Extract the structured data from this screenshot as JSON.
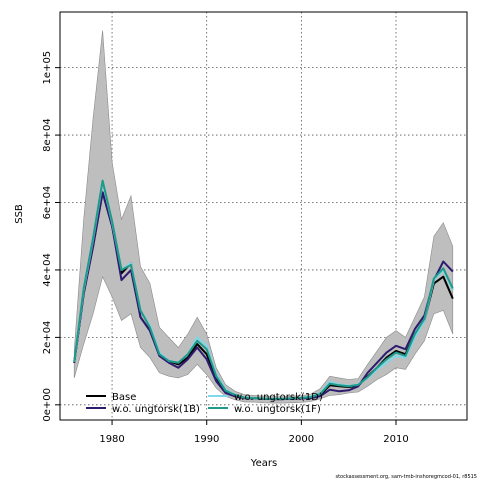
{
  "chart_data": {
    "type": "line",
    "xlabel": "Years",
    "ylabel": "SSB",
    "xlim": [
      1974.5,
      2017.5
    ],
    "ylim": [
      -4500,
      116500
    ],
    "xticks": [
      1980,
      1990,
      2000,
      2010
    ],
    "xtick_labels": [
      "1980",
      "1990",
      "2000",
      "2010"
    ],
    "yticks": [
      0,
      20000,
      40000,
      60000,
      80000,
      100000
    ],
    "ytick_labels": [
      "0e+00",
      "2e+04",
      "4e+04",
      "6e+04",
      "8e+04",
      "1e+05"
    ],
    "grid": true,
    "legend_position": "bottom-left",
    "x": [
      1976,
      1977,
      1978,
      1979,
      1980,
      1981,
      1982,
      1983,
      1984,
      1985,
      1986,
      1987,
      1988,
      1989,
      1990,
      1991,
      1992,
      1993,
      1994,
      1995,
      1996,
      1997,
      1998,
      1999,
      2000,
      2001,
      2002,
      2003,
      2004,
      2005,
      2006,
      2007,
      2008,
      2009,
      2010,
      2011,
      2012,
      2013,
      2014,
      2015,
      2016
    ],
    "confidence_band": {
      "color": "#bebebe",
      "upper": [
        16000,
        55000,
        85000,
        111000,
        72000,
        55000,
        62000,
        41000,
        36000,
        23000,
        20000,
        17000,
        21000,
        26000,
        21000,
        11000,
        6000,
        4000,
        3000,
        2800,
        2600,
        2400,
        2400,
        2600,
        2700,
        3200,
        4800,
        8500,
        8000,
        7500,
        7800,
        12000,
        16000,
        20000,
        22000,
        20000,
        26000,
        32000,
        50000,
        54000,
        47000
      ],
      "lower": [
        8000,
        18000,
        27000,
        38000,
        32000,
        25000,
        27000,
        17000,
        14000,
        9500,
        8500,
        8000,
        9000,
        12000,
        9000,
        5000,
        2500,
        1500,
        800,
        800,
        600,
        500,
        500,
        600,
        700,
        1000,
        1800,
        2800,
        3000,
        3500,
        3800,
        5500,
        7500,
        9000,
        11000,
        10500,
        15000,
        19000,
        27000,
        28000,
        21000
      ]
    },
    "series": [
      {
        "name": "Base",
        "color": "#000000",
        "values": [
          12500,
          33000,
          47000,
          63000,
          53000,
          39000,
          42000,
          26000,
          22000,
          15000,
          13000,
          12000,
          14000,
          18000,
          15000,
          8000,
          4000,
          2700,
          2000,
          2000,
          1800,
          1700,
          1700,
          1900,
          2000,
          2200,
          2900,
          5800,
          5500,
          5300,
          5700,
          8400,
          11000,
          14000,
          16000,
          15000,
          21000,
          25000,
          36000,
          38000,
          31500
        ]
      },
      {
        "name": "w.o. ungtorsk(1B)",
        "color": "#2e1a6e",
        "values": [
          12500,
          33000,
          47000,
          63000,
          53000,
          37000,
          40000,
          26000,
          22000,
          14500,
          12500,
          11000,
          13500,
          17000,
          13500,
          7000,
          3500,
          2500,
          2000,
          1900,
          1800,
          1700,
          1700,
          1800,
          1900,
          2000,
          2600,
          4500,
          4000,
          4300,
          5500,
          9500,
          12500,
          15500,
          17500,
          16500,
          22500,
          26500,
          37000,
          42500,
          39500
        ]
      },
      {
        "name": "w.o. ungtorsk(1D)",
        "color": "#7ed8ea",
        "values": [
          12700,
          34000,
          49000,
          66000,
          54000,
          40000,
          42000,
          28000,
          23500,
          15500,
          13000,
          12500,
          15000,
          20000,
          17500,
          9000,
          4500,
          3000,
          2200,
          2000,
          1900,
          1800,
          1800,
          2000,
          2100,
          2400,
          3500,
          6800,
          6000,
          5600,
          6000,
          8000,
          10500,
          12500,
          14500,
          14000,
          20000,
          25000,
          37000,
          40000,
          34000
        ]
      },
      {
        "name": "w.o. ungtorsk(1F)",
        "color": "#1e9a8a",
        "values": [
          12800,
          34500,
          49500,
          66500,
          54500,
          40000,
          41500,
          28000,
          23000,
          15000,
          13000,
          12500,
          15000,
          19000,
          16500,
          8500,
          4200,
          2900,
          2100,
          2000,
          1850,
          1750,
          1750,
          1950,
          2050,
          2300,
          3200,
          6300,
          5800,
          5500,
          5900,
          8200,
          11000,
          13500,
          15500,
          14500,
          21000,
          25500,
          37500,
          40500,
          34500
        ]
      }
    ]
  },
  "legend": {
    "items": [
      {
        "label": "Base",
        "color": "#000000"
      },
      {
        "label": "w.o. ungtorsk(1B)",
        "color": "#2e1a6e"
      },
      {
        "label": "w.o. ungtorsk(1D)",
        "color": "#7ed8ea"
      },
      {
        "label": "w.o. ungtorsk(1F)",
        "color": "#1e9a8a"
      }
    ]
  },
  "caption": "stockassessment.org, sam-tmb-inshoregmcod-01, r8515"
}
